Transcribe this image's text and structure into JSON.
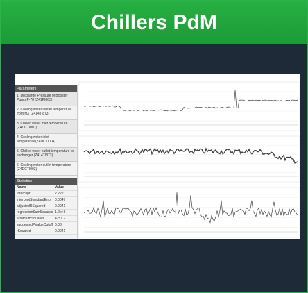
{
  "header": {
    "title": "Chillers PdM"
  },
  "parameters": {
    "title": "Parameters",
    "items": [
      "1. Discharge Pressure of Booster Pump P-78 (Z41PI863)",
      "2. Cooling water Outlet temperature from HX (Z414TI873)",
      "3. Chilled water inlet temperature (Z4DCTI001)",
      "4. Cooling water inlet temperature(Z4DCTI004)",
      "5. Chilled water outlet temperature to exchanger (Z414TI872)",
      "6. Cooling water outlet temperature (Z4DCTI003)"
    ]
  },
  "statistics": {
    "title": "Statistics",
    "columns": [
      "Name",
      "Value"
    ],
    "rows": [
      [
        "Intercept",
        "2.222"
      ],
      [
        "interceptStandardError",
        "0.0047"
      ],
      [
        "adjustedRSquared",
        "0.9941"
      ],
      [
        "regressionSumSquares",
        "1.2e+6"
      ],
      [
        "errorSumSquares",
        "4251.2"
      ],
      [
        "suggestedPValueCutoff",
        "0.08"
      ],
      [
        "rSquared",
        "0.9941"
      ]
    ]
  }
}
